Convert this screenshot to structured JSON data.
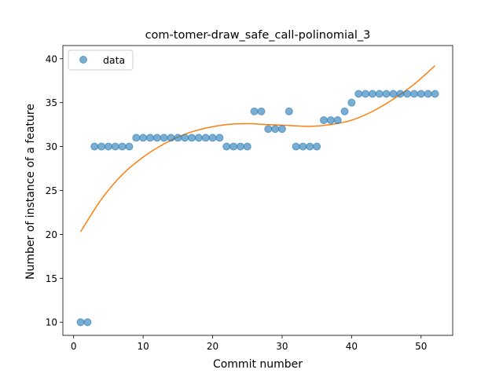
{
  "chart_data": {
    "type": "scatter",
    "title": "com-tomer-draw_safe_call-polinomial_3",
    "xlabel": "Commit number",
    "ylabel": "Number of instance of a feature",
    "xlim": [
      -1.55,
      54.55
    ],
    "ylim": [
      8.5,
      41.5
    ],
    "xticks": [
      0,
      10,
      20,
      30,
      40,
      50
    ],
    "yticks": [
      10,
      15,
      20,
      25,
      30,
      35,
      40
    ],
    "grid": false,
    "legend_position": "top-left",
    "series": [
      {
        "name": "data",
        "kind": "points",
        "color": "#1f77b4",
        "x": [
          1,
          2,
          3,
          4,
          5,
          6,
          7,
          8,
          9,
          10,
          11,
          12,
          13,
          14,
          15,
          16,
          17,
          18,
          19,
          20,
          21,
          22,
          23,
          24,
          25,
          26,
          27,
          28,
          29,
          30,
          31,
          32,
          33,
          34,
          35,
          36,
          37,
          38,
          39,
          40,
          41,
          42,
          43,
          44,
          45,
          46,
          47,
          48,
          49,
          50,
          51,
          52
        ],
        "y": [
          10,
          10,
          30,
          30,
          30,
          30,
          30,
          30,
          31,
          31,
          31,
          31,
          31,
          31,
          31,
          31,
          31,
          31,
          31,
          31,
          31,
          30,
          30,
          30,
          30,
          34,
          34,
          32,
          32,
          32,
          34,
          30,
          30,
          30,
          30,
          33,
          33,
          33,
          34,
          35,
          36,
          36,
          36,
          36,
          36,
          36,
          36,
          36,
          36,
          36,
          36,
          36
        ]
      },
      {
        "kind": "fit-line",
        "color": "#ff7f0e",
        "x": [
          1,
          4,
          7,
          10,
          13,
          16,
          19,
          22,
          25,
          28,
          31,
          34,
          37,
          40,
          43,
          46,
          49,
          52
        ],
        "y": [
          20.3,
          24.0,
          26.8,
          28.8,
          30.3,
          31.4,
          32.1,
          32.5,
          32.6,
          32.5,
          32.4,
          32.3,
          32.5,
          33.0,
          34.0,
          35.4,
          37.1,
          39.2
        ]
      }
    ]
  }
}
